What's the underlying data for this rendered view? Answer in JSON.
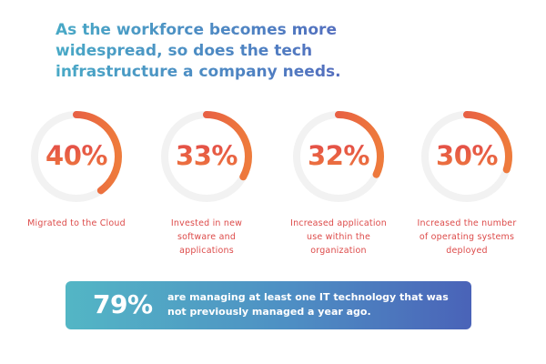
{
  "headline": {
    "line1": "As the workforce becomes more",
    "line2": "widespread, so does the tech",
    "line3": "infrastructure a company needs."
  },
  "colors": {
    "headline_gradient": [
      "#48a9c6",
      "#5a56b8"
    ],
    "ring_track": "#f2f2f2",
    "ring_arc": [
      "#e2474a",
      "#ee7b3c"
    ],
    "caption": "#dd4b4a",
    "banner_gradient": [
      "#53b6c5",
      "#4a63b8"
    ]
  },
  "chart_data": {
    "type": "donut",
    "stats": [
      {
        "value": 40,
        "label": "40%",
        "caption_lines": [
          "Migrated to the Cloud"
        ]
      },
      {
        "value": 33,
        "label": "33%",
        "caption_lines": [
          "Invested in new",
          "software and",
          "applications"
        ]
      },
      {
        "value": 32,
        "label": "32%",
        "caption_lines": [
          "Increased application",
          "use within the",
          "organization"
        ]
      },
      {
        "value": 30,
        "label": "30%",
        "caption_lines": [
          "Increased the number",
          "of operating systems",
          "deployed"
        ]
      }
    ]
  },
  "banner": {
    "value": "79%",
    "line1": "are managing at least one IT technology that was",
    "line2": "not previously managed a year ago."
  }
}
